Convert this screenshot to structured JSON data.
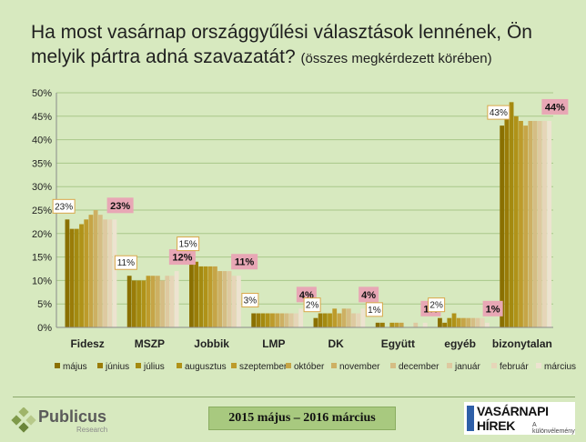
{
  "title": {
    "main": "Ha most vasárnap országgyűlési választások lennének, Ön melyik pártra adná szavazatát?",
    "sub": "(összes megkérdezett körében)"
  },
  "footer": {
    "logo_left": "Publicus",
    "logo_left_sub": "Research",
    "period": "2015 május – 2016 március",
    "logo_right": "VASÁRNAPI HÍREK",
    "logo_right_sub": "A különvélemény"
  },
  "chart_data": {
    "type": "bar",
    "ylim": [
      0,
      50
    ],
    "yticks": [
      "0%",
      "5%",
      "10%",
      "15%",
      "20%",
      "25%",
      "30%",
      "35%",
      "40%",
      "45%",
      "50%"
    ],
    "legend_position": "bottom",
    "grid": true,
    "categories": [
      "Fidesz",
      "MSZP",
      "Jobbik",
      "LMP",
      "DK",
      "Együtt",
      "egyéb",
      "bizonytalan"
    ],
    "series": [
      {
        "name": "május",
        "color": "#8a7000",
        "values": [
          23,
          11,
          15,
          3,
          2,
          1,
          2,
          43
        ]
      },
      {
        "name": "június",
        "color": "#9a7c08",
        "values": [
          21,
          10,
          14,
          3,
          3,
          1,
          1,
          47
        ]
      },
      {
        "name": "július",
        "color": "#a48a10",
        "values": [
          21,
          10,
          13,
          3,
          3,
          0,
          2,
          48
        ]
      },
      {
        "name": "augusztus",
        "color": "#b09218",
        "values": [
          22,
          10,
          13,
          3,
          3,
          1,
          3,
          45
        ]
      },
      {
        "name": "szeptember",
        "color": "#bd9b2b",
        "values": [
          23,
          11,
          13,
          3,
          4,
          1,
          2,
          44
        ]
      },
      {
        "name": "október",
        "color": "#c6a547",
        "values": [
          24,
          11,
          13,
          3,
          3,
          1,
          2,
          43
        ]
      },
      {
        "name": "november",
        "color": "#cdb063",
        "values": [
          25,
          11,
          12,
          3,
          4,
          0,
          2,
          44
        ]
      },
      {
        "name": "december",
        "color": "#d5bd84",
        "values": [
          24,
          10,
          12,
          3,
          4,
          0,
          2,
          44
        ]
      },
      {
        "name": "január",
        "color": "#dec9a0",
        "values": [
          23,
          11,
          12,
          3,
          3,
          1,
          2,
          44
        ]
      },
      {
        "name": "február",
        "color": "#e6d5b8",
        "values": [
          23,
          11,
          11,
          3,
          3,
          0,
          2,
          44
        ]
      },
      {
        "name": "március",
        "color": "#ede3d0",
        "values": [
          23,
          12,
          11,
          4,
          4,
          1,
          1,
          44
        ]
      }
    ],
    "data_labels": [
      {
        "category": "Fidesz",
        "first": "23%",
        "last": "23%"
      },
      {
        "category": "MSZP",
        "first": "11%",
        "last": "12%"
      },
      {
        "category": "Jobbik",
        "first": "15%",
        "last": "11%"
      },
      {
        "category": "LMP",
        "first": "3%",
        "last": "4%"
      },
      {
        "category": "DK",
        "first": "2%",
        "last": "4%"
      },
      {
        "category": "Együtt",
        "first": "1%",
        "last": "1%"
      },
      {
        "category": "egyéb",
        "first": "2%",
        "last": "1%"
      },
      {
        "category": "bizonytalan",
        "first": "43%",
        "last": "44%"
      }
    ]
  }
}
